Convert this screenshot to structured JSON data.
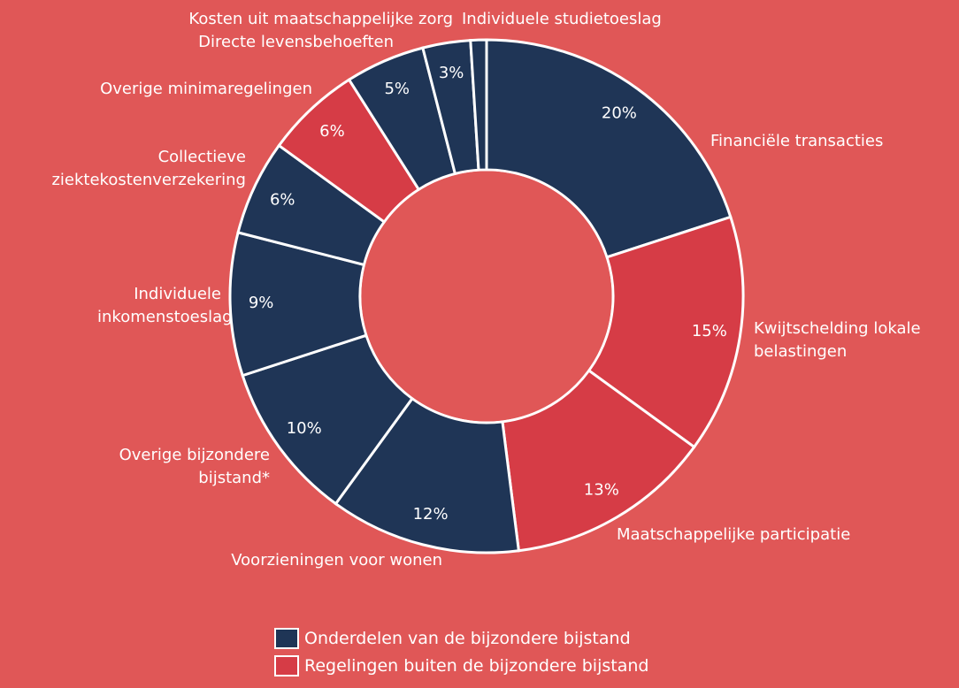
{
  "chart_data": {
    "type": "donut",
    "categories": [
      "Financiële transacties",
      "Kwijtschelding lokale belastingen",
      "Maatschappelijke participatie",
      "Voorzieningen voor wonen",
      "Overige bijzondere bijstand*",
      "Individuele inkomenstoeslag",
      "Collectieve ziektekostenverzekering",
      "Overige minimaregelingen",
      "Directe levensbehoeften",
      "Kosten uit maatschappelijke zorg",
      "Individuele studietoeslag"
    ],
    "values": [
      20,
      15,
      13,
      12,
      10,
      9,
      6,
      6,
      5,
      3,
      1
    ],
    "value_labels": [
      "20%",
      "15%",
      "13%",
      "12%",
      "10%",
      "9%",
      "6%",
      "6%",
      "5%",
      "3%",
      null
    ],
    "colors": [
      "#1f3556",
      "#d63c46",
      "#d63c46",
      "#1f3556",
      "#1f3556",
      "#1f3556",
      "#1f3556",
      "#d63c46",
      "#1f3556",
      "#1f3556",
      "#1f3556"
    ],
    "legend": [
      {
        "name": "Onderdelen van de bijzondere bijstand",
        "color": "#1f3556"
      },
      {
        "name": "Regelingen buiten de bijzondere bijstand",
        "color": "#d63c46"
      }
    ]
  }
}
